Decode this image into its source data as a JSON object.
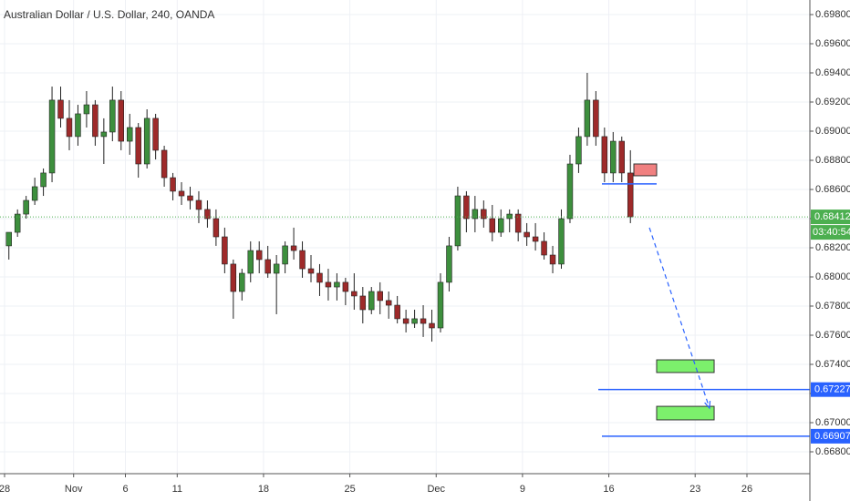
{
  "chart_data": {
    "type": "candlestick",
    "title": "Australian Dollar / U.S. Dollar, 240, OANDA",
    "xlim": [
      -0.264,
      46.645
    ],
    "ylim": [
      0.6665,
      0.699
    ],
    "xticks": [
      {
        "value": 0,
        "label": "28"
      },
      {
        "value": 4,
        "label": "Nov"
      },
      {
        "value": 7,
        "label": "6"
      },
      {
        "value": 10,
        "label": "11"
      },
      {
        "value": 15,
        "label": "18"
      },
      {
        "value": 20,
        "label": "25"
      },
      {
        "value": 25,
        "label": "Dec"
      },
      {
        "value": 30,
        "label": "9"
      },
      {
        "value": 35,
        "label": "16"
      },
      {
        "value": 40,
        "label": "23"
      },
      {
        "value": 43,
        "label": "26"
      }
    ],
    "yticks": [
      {
        "value": 0.698,
        "label": "0.69800"
      },
      {
        "value": 0.696,
        "label": "0.69600"
      },
      {
        "value": 0.694,
        "label": "0.69400"
      },
      {
        "value": 0.692,
        "label": "0.69200"
      },
      {
        "value": 0.69,
        "label": "0.69000"
      },
      {
        "value": 0.688,
        "label": "0.68800"
      },
      {
        "value": 0.686,
        "label": "0.68600"
      },
      {
        "value": 0.684,
        "label": "0.68400"
      },
      {
        "value": 0.682,
        "label": "0.68200"
      },
      {
        "value": 0.68,
        "label": "0.68000"
      },
      {
        "value": 0.678,
        "label": "0.67800"
      },
      {
        "value": 0.676,
        "label": "0.67600"
      },
      {
        "value": 0.674,
        "label": "0.67400"
      },
      {
        "value": 0.672,
        "label": "0.67200"
      },
      {
        "value": 0.67,
        "label": "0.67000"
      },
      {
        "value": 0.668,
        "label": "0.66800"
      }
    ],
    "grid": true,
    "up_color": "#3d8f3d",
    "down_color": "#9e2a2a",
    "wick_color": "#222222",
    "x": [
      0.25,
      0.75,
      1.25,
      1.75,
      2.25,
      2.75,
      3.25,
      3.75,
      4.25,
      4.75,
      5.25,
      5.75,
      6.25,
      6.75,
      7.25,
      7.75,
      8.25,
      8.75,
      9.25,
      9.75,
      10.25,
      10.75,
      11.25,
      11.75,
      12.25,
      12.75,
      13.25,
      13.75,
      14.25,
      14.75,
      15.25,
      15.75,
      16.25,
      16.75,
      17.25,
      17.75,
      18.25,
      18.75,
      19.25,
      19.75,
      20.25,
      20.75,
      21.25,
      21.75,
      22.25,
      22.75,
      23.25,
      23.75,
      24.25,
      24.75,
      25.25,
      25.75,
      26.25,
      26.75,
      27.25,
      27.75,
      28.25,
      28.75,
      29.25,
      29.75,
      30.25,
      30.75,
      31.25,
      31.75,
      32.25,
      32.75,
      33.25,
      33.75,
      34.25,
      34.75,
      35.25,
      35.75,
      36.25
    ],
    "open": [
      0.68213,
      0.68306,
      0.68431,
      0.68525,
      0.68619,
      0.68713,
      0.69213,
      0.69088,
      0.68963,
      0.69119,
      0.69181,
      0.68963,
      0.68994,
      0.69213,
      0.68931,
      0.69025,
      0.68775,
      0.69088,
      0.68869,
      0.68681,
      0.68588,
      0.68556,
      0.68525,
      0.68463,
      0.684,
      0.68275,
      0.68088,
      0.679,
      0.68025,
      0.68181,
      0.68119,
      0.68025,
      0.68088,
      0.68213,
      0.68181,
      0.68056,
      0.68025,
      0.67963,
      0.67931,
      0.67963,
      0.679,
      0.67869,
      0.67775,
      0.679,
      0.67838,
      0.67806,
      0.67713,
      0.67681,
      0.67713,
      0.67681,
      0.6765,
      0.67963,
      0.68213,
      0.68556,
      0.684,
      0.68463,
      0.684,
      0.68306,
      0.684,
      0.68431,
      0.68306,
      0.68275,
      0.68244,
      0.6815,
      0.68088,
      0.684,
      0.68775,
      0.68963,
      0.69213,
      0.68963,
      0.68713,
      0.68931,
      0.68713
    ],
    "high": [
      0.68306,
      0.68463,
      0.68556,
      0.68681,
      0.68744,
      0.69306,
      0.69306,
      0.69213,
      0.69181,
      0.69275,
      0.69213,
      0.69088,
      0.69306,
      0.69275,
      0.69119,
      0.69056,
      0.6915,
      0.69119,
      0.689,
      0.68713,
      0.6865,
      0.68619,
      0.68588,
      0.68525,
      0.68463,
      0.68338,
      0.68119,
      0.68056,
      0.68244,
      0.68244,
      0.68213,
      0.6815,
      0.68244,
      0.68338,
      0.68244,
      0.6815,
      0.68088,
      0.68056,
      0.68025,
      0.67994,
      0.68025,
      0.67931,
      0.67931,
      0.67963,
      0.679,
      0.67869,
      0.67775,
      0.67775,
      0.67806,
      0.67775,
      0.68025,
      0.68275,
      0.68619,
      0.68588,
      0.68556,
      0.68525,
      0.68494,
      0.68463,
      0.68463,
      0.68463,
      0.68369,
      0.68369,
      0.68306,
      0.68213,
      0.68463,
      0.68838,
      0.69025,
      0.694,
      0.69275,
      0.69025,
      0.68994,
      0.68963,
      0.68869
    ],
    "low": [
      0.68119,
      0.68275,
      0.684,
      0.68494,
      0.68556,
      0.6865,
      0.69025,
      0.68869,
      0.689,
      0.69025,
      0.689,
      0.68775,
      0.68931,
      0.68869,
      0.68838,
      0.68681,
      0.68744,
      0.68806,
      0.68619,
      0.68525,
      0.68494,
      0.68463,
      0.68369,
      0.68338,
      0.68213,
      0.68025,
      0.67713,
      0.67838,
      0.67963,
      0.68025,
      0.67994,
      0.67744,
      0.68025,
      0.68119,
      0.67994,
      0.67963,
      0.67869,
      0.67838,
      0.67838,
      0.67806,
      0.67775,
      0.67681,
      0.67744,
      0.67744,
      0.67713,
      0.67681,
      0.67619,
      0.6765,
      0.67588,
      0.67556,
      0.67619,
      0.679,
      0.68181,
      0.68306,
      0.68306,
      0.68338,
      0.68244,
      0.68275,
      0.68306,
      0.68244,
      0.68213,
      0.68181,
      0.68119,
      0.68025,
      0.68056,
      0.68369,
      0.68713,
      0.689,
      0.689,
      0.6865,
      0.6865,
      0.6865,
      0.68369
    ],
    "close": [
      0.68306,
      0.68431,
      0.68525,
      0.68619,
      0.68713,
      0.69213,
      0.69088,
      0.68963,
      0.69119,
      0.69181,
      0.68963,
      0.68994,
      0.69213,
      0.68931,
      0.69025,
      0.68775,
      0.69088,
      0.68869,
      0.68681,
      0.68588,
      0.68556,
      0.68525,
      0.68463,
      0.684,
      0.68275,
      0.68088,
      0.679,
      0.68025,
      0.68181,
      0.68119,
      0.68025,
      0.68088,
      0.68213,
      0.68181,
      0.68056,
      0.68025,
      0.67963,
      0.67931,
      0.67963,
      0.679,
      0.67869,
      0.67775,
      0.679,
      0.67838,
      0.67806,
      0.67713,
      0.67681,
      0.67713,
      0.67681,
      0.6765,
      0.67963,
      0.68213,
      0.68556,
      0.684,
      0.68463,
      0.684,
      0.68306,
      0.684,
      0.68431,
      0.68306,
      0.68275,
      0.68244,
      0.6815,
      0.68088,
      0.684,
      0.68775,
      0.68963,
      0.69213,
      0.68963,
      0.68713,
      0.68931,
      0.68713,
      0.68412
    ],
    "last_price": 0.68412,
    "last_price_color": "#4caf50",
    "countdown": "03:40:54",
    "levels": [
      {
        "value": 0.67227,
        "x": [
          34.39,
          46.645
        ],
        "color": "#2962ff"
      },
      {
        "value": 0.66907,
        "x": [
          34.6,
          46.645
        ],
        "color": "#2962ff"
      },
      {
        "value": 0.68638,
        "x": [
          34.6,
          37.77
        ],
        "color": "#2962ff"
      }
    ],
    "zones": [
      {
        "top": 0.68775,
        "bottom": 0.68694,
        "x": [
          36.45,
          37.77
        ],
        "color": "#f08080"
      },
      {
        "top": 0.67431,
        "bottom": 0.67344,
        "x": [
          37.77,
          41.1
        ],
        "color": "#7cf06c"
      },
      {
        "top": 0.67112,
        "bottom": 0.67019,
        "x": [
          37.77,
          41.1
        ],
        "color": "#7cf06c"
      }
    ],
    "arrow": {
      "x": [
        37.35,
        40.83
      ],
      "y": [
        0.68338,
        0.671
      ],
      "color": "#2962ff"
    }
  }
}
